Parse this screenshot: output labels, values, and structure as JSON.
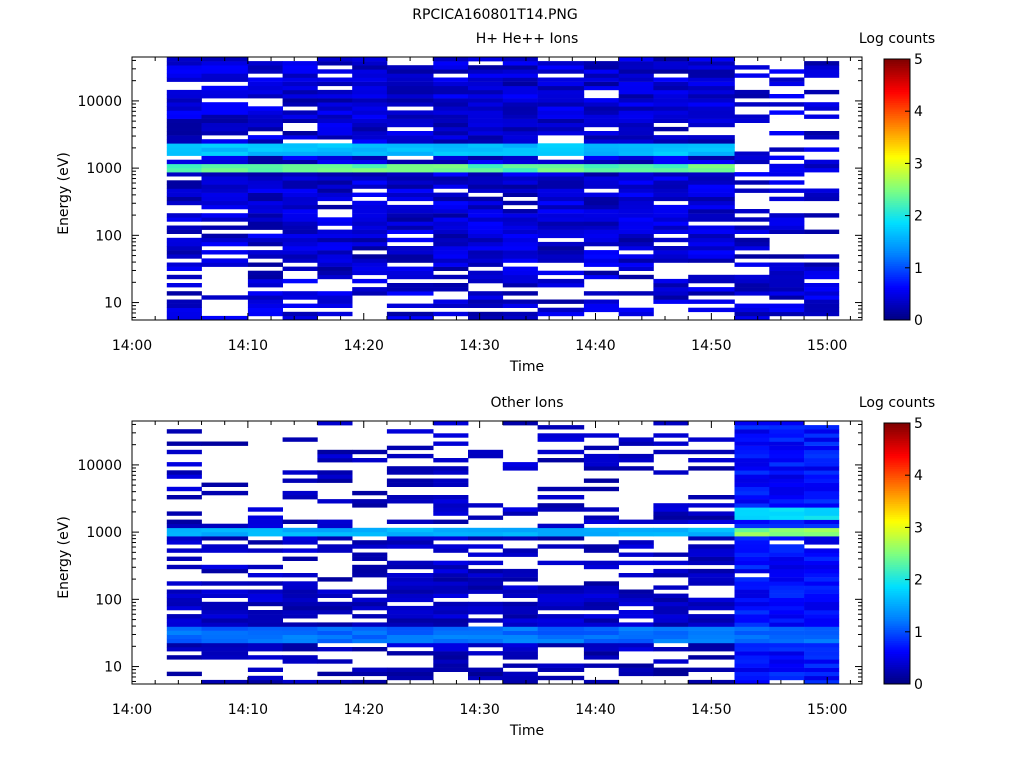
{
  "figure_title": "RPCICA160801T14.PNG",
  "colormap_stops": [
    "#00007f",
    "#0000ff",
    "#0080ff",
    "#00e0ff",
    "#7fff7f",
    "#ffff00",
    "#ff8000",
    "#ff0000",
    "#7f0000"
  ],
  "chart_data": [
    {
      "type": "heatmap",
      "title": "H+ He++ Ions",
      "xlabel": "Time",
      "ylabel": "Energy (eV)",
      "colorbar_label": "Log counts",
      "colorbar_ticks": [
        "0",
        "1",
        "2",
        "3",
        "4",
        "5"
      ],
      "clim": [
        0,
        5
      ],
      "x_ticks": [
        "14:00",
        "14:10",
        "14:20",
        "14:30",
        "14:40",
        "14:50",
        "15:00"
      ],
      "xlim": [
        "14:00",
        "15:03"
      ],
      "y_scale": "log",
      "y_ticks": [
        "10",
        "100",
        "1000",
        "10000"
      ],
      "ylim": [
        5.5,
        45000
      ],
      "time_bins": [
        "14:03",
        "14:06",
        "14:10",
        "14:13",
        "14:16",
        "14:19",
        "14:22",
        "14:26",
        "14:29",
        "14:32",
        "14:35",
        "14:39",
        "14:42",
        "14:45",
        "14:48",
        "14:52",
        "14:55",
        "14:58"
      ],
      "data_end": "15:01",
      "energy_range": [
        5.5,
        45000
      ],
      "energy_bands": [
        {
          "energy": 1000,
          "value": 2.4,
          "end": "14:52"
        },
        {
          "energy": 1900,
          "value": 1.7,
          "end": "14:52"
        }
      ],
      "sparse_from": "14:52",
      "low_energy_enhancement": null
    },
    {
      "type": "heatmap",
      "title": "Other Ions",
      "xlabel": "Time",
      "ylabel": "Energy (eV)",
      "colorbar_label": "Log counts",
      "colorbar_ticks": [
        "0",
        "1",
        "2",
        "3",
        "4",
        "5"
      ],
      "clim": [
        0,
        5
      ],
      "x_ticks": [
        "14:00",
        "14:10",
        "14:20",
        "14:30",
        "14:40",
        "14:50",
        "15:00"
      ],
      "xlim": [
        "14:00",
        "15:03"
      ],
      "y_scale": "log",
      "y_ticks": [
        "10",
        "100",
        "1000",
        "10000"
      ],
      "ylim": [
        5.5,
        45000
      ],
      "time_bins": [
        "14:03",
        "14:06",
        "14:10",
        "14:13",
        "14:16",
        "14:19",
        "14:22",
        "14:26",
        "14:29",
        "14:32",
        "14:35",
        "14:39",
        "14:42",
        "14:45",
        "14:48",
        "14:52",
        "14:55",
        "14:58"
      ],
      "data_end": "15:01",
      "energy_range": [
        5.5,
        45000
      ],
      "energy_bands": [
        {
          "energy": 1000,
          "value": 1.6,
          "end": "14:52"
        },
        {
          "energy": 1000,
          "value": 2.6,
          "start": "14:52",
          "end": "15:01"
        },
        {
          "energy": 1900,
          "value": 1.9,
          "start": "14:52",
          "end": "15:01"
        }
      ],
      "dense_from": "14:52",
      "low_energy_enhancement": {
        "from": 22,
        "to": 38,
        "value": 1.2
      }
    }
  ]
}
